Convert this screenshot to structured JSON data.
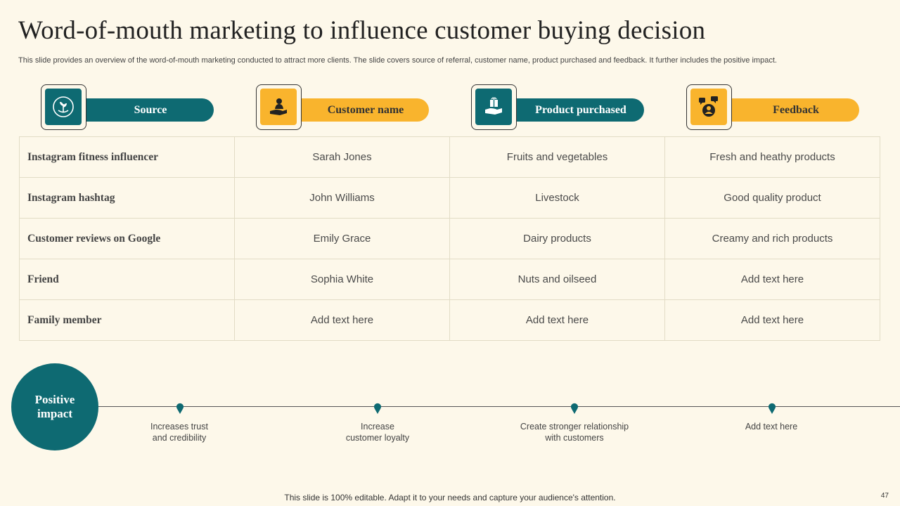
{
  "title": "Word-of-mouth marketing to influence customer buying decision",
  "subtitle": "This slide provides an overview of the word-of-mouth marketing conducted to attract more clients. The slide covers source of referral, customer name, product purchased and feedback. It further includes the positive impact.",
  "headers": [
    {
      "label": "Source",
      "icon": "plant-hand-icon",
      "color": "#0e6a72"
    },
    {
      "label": "Customer name",
      "icon": "person-hand-icon",
      "color": "#f9b42d"
    },
    {
      "label": "Product purchased",
      "icon": "gift-hand-icon",
      "color": "#0e6a72"
    },
    {
      "label": "Feedback",
      "icon": "user-chat-icon",
      "color": "#f9b42d"
    }
  ],
  "rows": [
    {
      "source": "Instagram fitness influencer",
      "customer": "Sarah Jones",
      "product": "Fruits and vegetables",
      "feedback": "Fresh and heathy products"
    },
    {
      "source": "Instagram hashtag",
      "customer": "John Williams",
      "product": "Livestock",
      "feedback": "Good quality product"
    },
    {
      "source": "Customer reviews on Google",
      "customer": "Emily Grace",
      "product": "Dairy products",
      "feedback": "Creamy and rich products"
    },
    {
      "source": "Friend",
      "customer": "Sophia White",
      "product": "Nuts and oilseed",
      "feedback": "Add text here"
    },
    {
      "source": "Family member",
      "customer": "Add text here",
      "product": "Add text here",
      "feedback": "Add text here"
    }
  ],
  "impact": {
    "label_line1": "Positive",
    "label_line2": "impact",
    "items": [
      {
        "line1": "Increases trust",
        "line2": "and credibility"
      },
      {
        "line1": "Increase",
        "line2": "customer loyalty"
      },
      {
        "line1": "Create stronger relationship",
        "line2": "with customers"
      },
      {
        "line1": "Add text here",
        "line2": ""
      }
    ]
  },
  "footer": "This slide is 100% editable. Adapt it to your needs and capture your audience's attention.",
  "page_number": "47"
}
